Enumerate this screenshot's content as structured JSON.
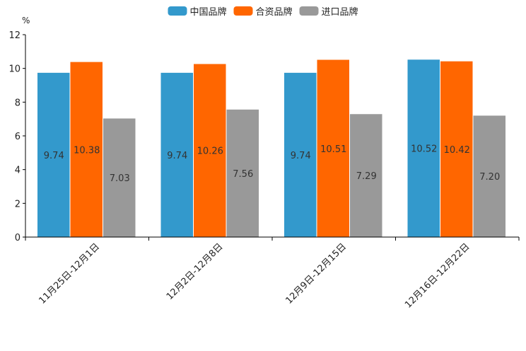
{
  "chart_data": {
    "type": "bar",
    "title": "",
    "unit": "%",
    "xlabel": "",
    "ylabel": "%",
    "ylim": [
      0,
      12
    ],
    "yticks": [
      0,
      2,
      4,
      6,
      8,
      10,
      12
    ],
    "grid": false,
    "legend_position": "top-center",
    "categories": [
      "11月25日-12月1日",
      "12月2日-12月8日",
      "12月9日-12月15日",
      "12月16日-12月22日"
    ],
    "series": [
      {
        "name": "中国品牌",
        "color": "#3399cc",
        "values": [
          9.74,
          9.74,
          9.74,
          10.52
        ],
        "labels": [
          "9.74",
          "9.74",
          "9.74",
          "10.52"
        ]
      },
      {
        "name": "合资品牌",
        "color": "#ff6600",
        "values": [
          10.38,
          10.26,
          10.51,
          10.42
        ],
        "labels": [
          "10.38",
          "10.26",
          "10.51",
          "10.42"
        ]
      },
      {
        "name": "进口品牌",
        "color": "#999999",
        "values": [
          7.03,
          7.56,
          7.29,
          7.2
        ],
        "labels": [
          "7.03",
          "7.56",
          "7.29",
          "7.20"
        ]
      }
    ]
  }
}
